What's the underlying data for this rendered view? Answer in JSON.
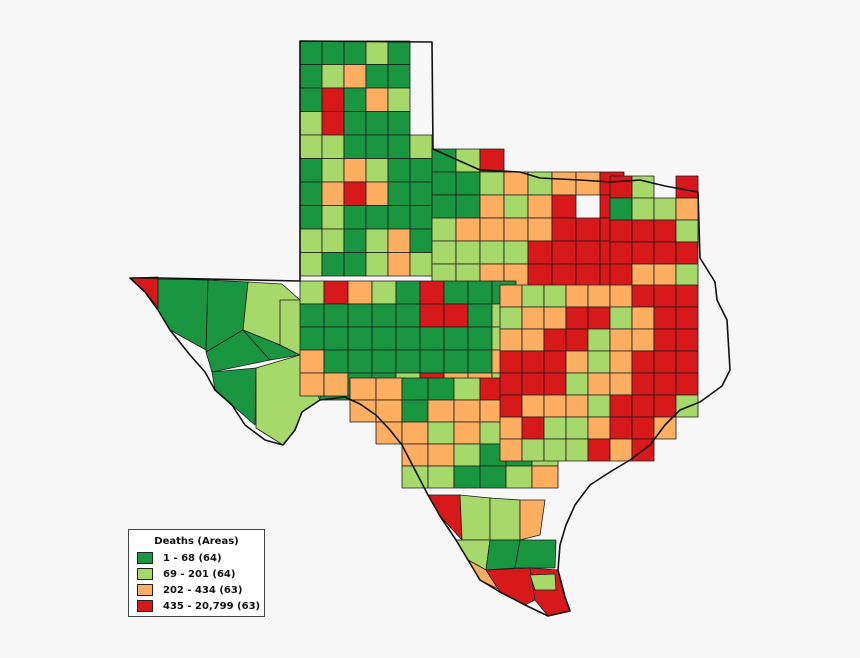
{
  "colors": {
    "class1": "#1a9641",
    "class2": "#a6d96a",
    "class3": "#fdae61",
    "class4": "#d7191c"
  },
  "legend": {
    "title": "Deaths (Areas)",
    "items": [
      {
        "label": "1 - 68 (64)",
        "color": "#1a9641"
      },
      {
        "label": "69 - 201 (64)",
        "color": "#a6d96a"
      },
      {
        "label": "202 - 434 (63)",
        "color": "#fdae61"
      },
      {
        "label": "435 - 20,799 (63)",
        "color": "#d7191c"
      }
    ]
  }
}
